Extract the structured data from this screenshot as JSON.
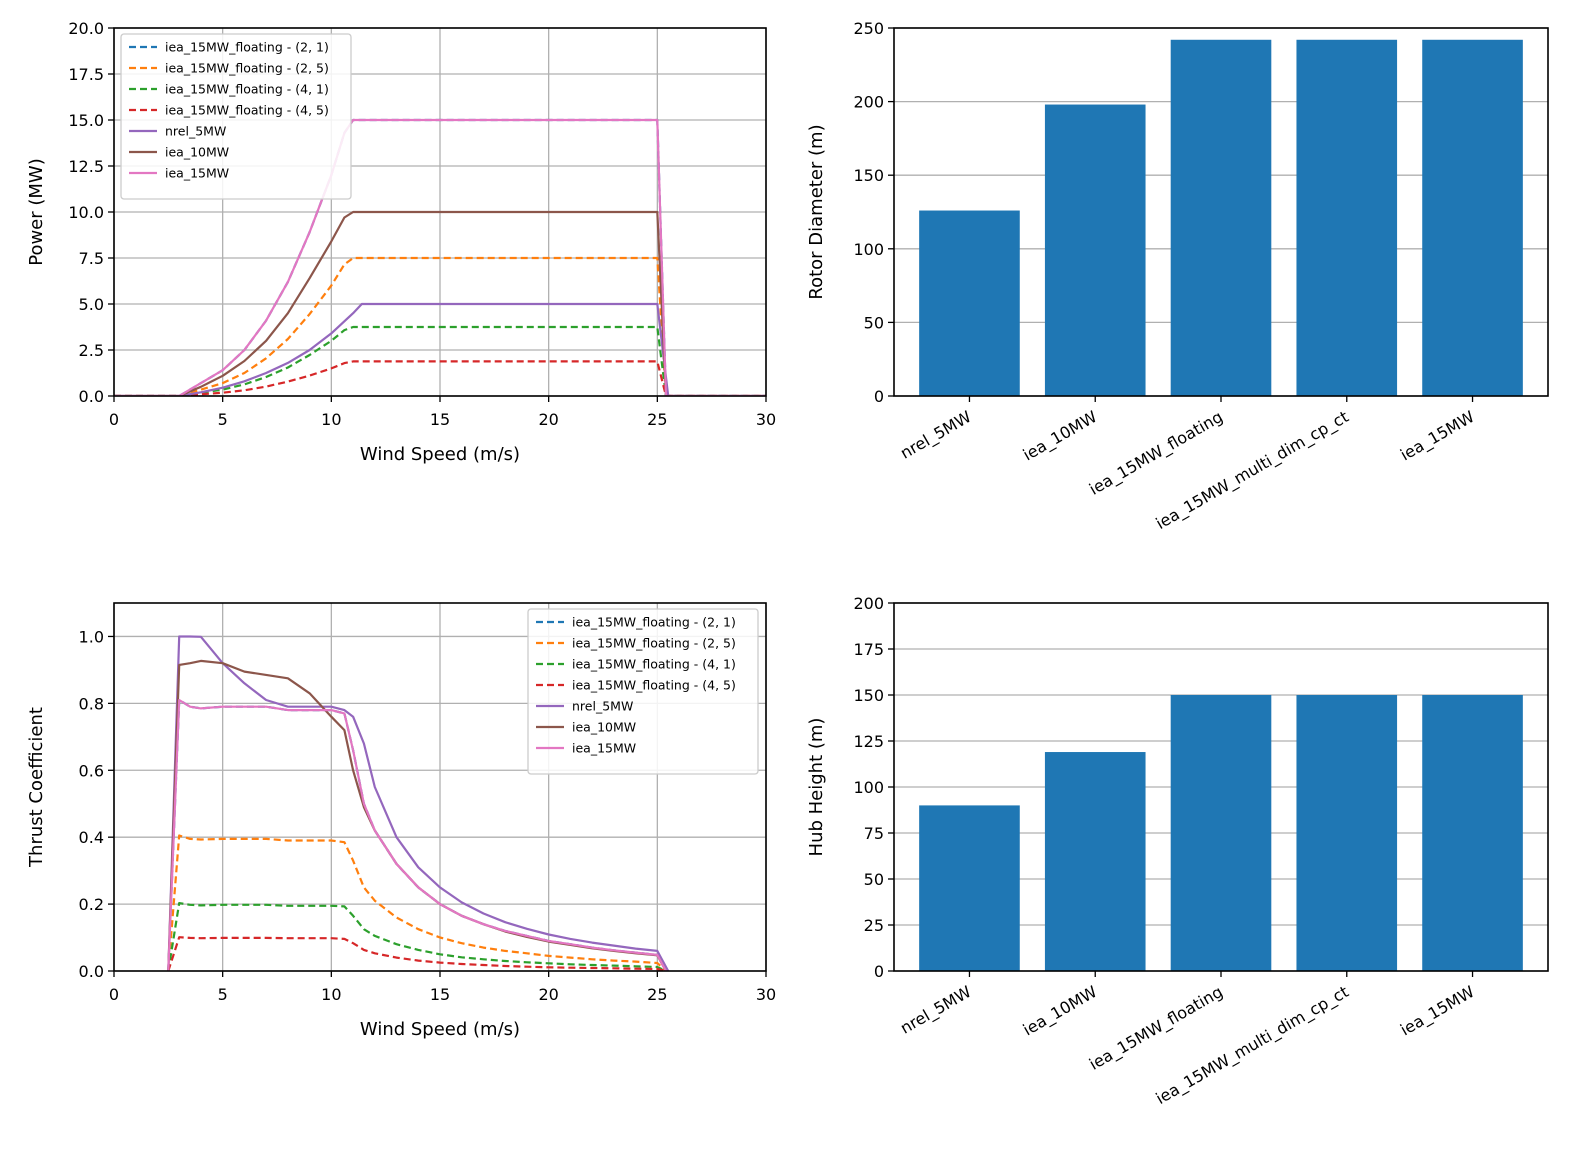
{
  "colors": {
    "tab_blue": "#1f77b4",
    "tab_orange": "#ff7f0e",
    "tab_green": "#2ca02c",
    "tab_red": "#d62728",
    "tab_purple": "#9467bd",
    "tab_brown": "#8c564b",
    "tab_pink": "#e377c2",
    "grid": "#b0b0b0",
    "bar": "#1f77b4"
  },
  "chart_data": [
    {
      "id": "power",
      "type": "line",
      "title": "",
      "xlabel": "Wind Speed (m/s)",
      "ylabel": "Power (MW)",
      "xlim": [
        0,
        30
      ],
      "ylim": [
        0,
        20
      ],
      "xticks": [
        0,
        5,
        10,
        15,
        20,
        25,
        30
      ],
      "xtick_labels": [
        "0",
        "5",
        "10",
        "15",
        "20",
        "25",
        "30"
      ],
      "yticks": [
        0,
        2.5,
        5,
        7.5,
        10,
        12.5,
        15,
        17.5,
        20
      ],
      "ytick_labels": [
        "0.0",
        "2.5",
        "5.0",
        "7.5",
        "10.0",
        "12.5",
        "15.0",
        "17.5",
        "20.0"
      ],
      "grid": true,
      "legend_position": "top-left",
      "series": [
        {
          "name": "iea_15MW_floating - (2, 1)",
          "color": "#1f77b4",
          "dashed": true,
          "x": [
            0,
            3,
            4,
            5,
            6,
            7,
            8,
            9,
            10,
            10.6,
            11,
            25,
            25.4,
            30
          ],
          "y": [
            0,
            0,
            0.7,
            1.4,
            2.5,
            4.1,
            6.2,
            8.9,
            12.0,
            14.3,
            15.0,
            15.0,
            0,
            0
          ]
        },
        {
          "name": "iea_15MW_floating - (2, 5)",
          "color": "#ff7f0e",
          "dashed": true,
          "x": [
            0,
            3,
            4,
            5,
            6,
            7,
            8,
            9,
            10,
            10.6,
            11,
            25,
            25.4,
            30
          ],
          "y": [
            0,
            0,
            0.35,
            0.7,
            1.25,
            2.05,
            3.1,
            4.45,
            6.0,
            7.15,
            7.5,
            7.5,
            0,
            0
          ]
        },
        {
          "name": "iea_15MW_floating - (4, 1)",
          "color": "#2ca02c",
          "dashed": true,
          "x": [
            0,
            3,
            4,
            5,
            6,
            7,
            8,
            9,
            10,
            10.6,
            11,
            25,
            25.4,
            30
          ],
          "y": [
            0,
            0,
            0.18,
            0.35,
            0.63,
            1.03,
            1.55,
            2.23,
            3.0,
            3.58,
            3.75,
            3.75,
            0,
            0
          ]
        },
        {
          "name": "iea_15MW_floating - (4, 5)",
          "color": "#d62728",
          "dashed": true,
          "x": [
            0,
            3,
            4,
            5,
            6,
            7,
            8,
            9,
            10,
            10.6,
            11,
            25,
            25.4,
            30
          ],
          "y": [
            0,
            0,
            0.09,
            0.18,
            0.31,
            0.51,
            0.78,
            1.11,
            1.5,
            1.79,
            1.88,
            1.88,
            0,
            0
          ]
        },
        {
          "name": "nrel_5MW",
          "color": "#9467bd",
          "dashed": false,
          "x": [
            0,
            3,
            4,
            5,
            6,
            7,
            8,
            9,
            10,
            11,
            11.4,
            25,
            25.5,
            30
          ],
          "y": [
            0,
            0,
            0.2,
            0.45,
            0.8,
            1.25,
            1.8,
            2.5,
            3.4,
            4.5,
            5.0,
            5.0,
            0,
            0
          ]
        },
        {
          "name": "iea_10MW",
          "color": "#8c564b",
          "dashed": false,
          "x": [
            0,
            3,
            4,
            5,
            6,
            7,
            8,
            9,
            10,
            10.6,
            11,
            25,
            25.4,
            30
          ],
          "y": [
            0,
            0,
            0.5,
            1.1,
            1.9,
            3.0,
            4.5,
            6.4,
            8.4,
            9.7,
            10.0,
            10.0,
            0,
            0
          ]
        },
        {
          "name": "iea_15MW",
          "color": "#e377c2",
          "dashed": false,
          "x": [
            0,
            3,
            4,
            5,
            6,
            7,
            8,
            9,
            10,
            10.6,
            11,
            25,
            25.4,
            30
          ],
          "y": [
            0,
            0,
            0.7,
            1.4,
            2.5,
            4.1,
            6.2,
            8.9,
            12.0,
            14.3,
            15.0,
            15.0,
            0,
            0
          ]
        }
      ]
    },
    {
      "id": "rotor",
      "type": "bar",
      "title": "",
      "xlabel": "",
      "ylabel": "Rotor Diameter (m)",
      "ylim": [
        0,
        250
      ],
      "yticks": [
        0,
        50,
        100,
        150,
        200,
        250
      ],
      "ytick_labels": [
        "0",
        "50",
        "100",
        "150",
        "200",
        "250"
      ],
      "grid": true,
      "categories": [
        "nrel_5MW",
        "iea_10MW",
        "iea_15MW_floating",
        "iea_15MW_multi_dim_cp_ct",
        "iea_15MW"
      ],
      "values": [
        126,
        198,
        242,
        242,
        242
      ]
    },
    {
      "id": "thrust",
      "type": "line",
      "title": "",
      "xlabel": "Wind Speed (m/s)",
      "ylabel": "Thrust Coefficient",
      "xlim": [
        0,
        30
      ],
      "ylim": [
        0,
        1.1
      ],
      "xticks": [
        0,
        5,
        10,
        15,
        20,
        25,
        30
      ],
      "xtick_labels": [
        "0",
        "5",
        "10",
        "15",
        "20",
        "25",
        "30"
      ],
      "yticks": [
        0,
        0.2,
        0.4,
        0.6,
        0.8,
        1.0
      ],
      "ytick_labels": [
        "0.0",
        "0.2",
        "0.4",
        "0.6",
        "0.8",
        "1.0"
      ],
      "grid": true,
      "legend_position": "top-right",
      "series": [
        {
          "name": "iea_15MW_floating - (2, 1)",
          "color": "#1f77b4",
          "dashed": true,
          "x": [
            2.5,
            3,
            3.5,
            4,
            5,
            6,
            7,
            8,
            9,
            10,
            10.6,
            11,
            11.5,
            12,
            13,
            14,
            15,
            16,
            17,
            18,
            19,
            20,
            21,
            22,
            23,
            24,
            25,
            25.4
          ],
          "y": [
            0,
            0.81,
            0.79,
            0.785,
            0.79,
            0.79,
            0.79,
            0.78,
            0.78,
            0.78,
            0.77,
            0.66,
            0.5,
            0.42,
            0.32,
            0.25,
            0.2,
            0.165,
            0.14,
            0.12,
            0.105,
            0.09,
            0.08,
            0.07,
            0.062,
            0.055,
            0.048,
            0
          ]
        },
        {
          "name": "iea_15MW_floating - (2, 5)",
          "color": "#ff7f0e",
          "dashed": true,
          "x": [
            2.5,
            3,
            3.5,
            4,
            5,
            6,
            7,
            8,
            9,
            10,
            10.6,
            11,
            11.5,
            12,
            13,
            14,
            15,
            16,
            17,
            18,
            19,
            20,
            21,
            22,
            23,
            24,
            25,
            25.4
          ],
          "y": [
            0,
            0.405,
            0.395,
            0.393,
            0.395,
            0.395,
            0.395,
            0.39,
            0.39,
            0.39,
            0.385,
            0.33,
            0.25,
            0.21,
            0.16,
            0.125,
            0.1,
            0.083,
            0.07,
            0.06,
            0.053,
            0.045,
            0.04,
            0.035,
            0.031,
            0.028,
            0.024,
            0
          ]
        },
        {
          "name": "iea_15MW_floating - (4, 1)",
          "color": "#2ca02c",
          "dashed": true,
          "x": [
            2.5,
            3,
            3.5,
            4,
            5,
            6,
            7,
            8,
            9,
            10,
            10.6,
            11,
            11.5,
            12,
            13,
            14,
            15,
            16,
            17,
            18,
            19,
            20,
            21,
            22,
            23,
            24,
            25,
            25.4
          ],
          "y": [
            0,
            0.203,
            0.198,
            0.196,
            0.198,
            0.198,
            0.198,
            0.195,
            0.195,
            0.195,
            0.193,
            0.165,
            0.125,
            0.105,
            0.08,
            0.063,
            0.05,
            0.041,
            0.035,
            0.03,
            0.026,
            0.023,
            0.02,
            0.018,
            0.016,
            0.014,
            0.012,
            0
          ]
        },
        {
          "name": "iea_15MW_floating - (4, 5)",
          "color": "#d62728",
          "dashed": true,
          "x": [
            2.5,
            3,
            3.5,
            4,
            5,
            6,
            7,
            8,
            9,
            10,
            10.6,
            11,
            11.5,
            12,
            13,
            14,
            15,
            16,
            17,
            18,
            19,
            20,
            21,
            22,
            23,
            24,
            25,
            25.4
          ],
          "y": [
            0,
            0.101,
            0.099,
            0.098,
            0.099,
            0.099,
            0.099,
            0.098,
            0.098,
            0.098,
            0.096,
            0.083,
            0.063,
            0.053,
            0.04,
            0.031,
            0.025,
            0.021,
            0.018,
            0.015,
            0.013,
            0.011,
            0.01,
            0.009,
            0.008,
            0.007,
            0.006,
            0
          ]
        },
        {
          "name": "nrel_5MW",
          "color": "#9467bd",
          "dashed": false,
          "x": [
            2.5,
            3,
            3.5,
            4,
            5,
            6,
            7,
            8,
            9,
            10,
            10.6,
            11,
            11.5,
            12,
            13,
            14,
            15,
            16,
            17,
            18,
            19,
            20,
            21,
            22,
            23,
            24,
            25,
            25.5
          ],
          "y": [
            0,
            1.0,
            1.0,
            0.999,
            0.92,
            0.86,
            0.81,
            0.79,
            0.79,
            0.79,
            0.78,
            0.76,
            0.68,
            0.55,
            0.4,
            0.31,
            0.25,
            0.205,
            0.172,
            0.146,
            0.126,
            0.109,
            0.096,
            0.085,
            0.076,
            0.067,
            0.06,
            0
          ]
        },
        {
          "name": "iea_10MW",
          "color": "#8c564b",
          "dashed": false,
          "x": [
            2.5,
            3,
            3.5,
            4,
            5,
            6,
            7,
            8,
            9,
            10,
            10.6,
            11,
            11.5,
            12,
            13,
            14,
            15,
            16,
            17,
            18,
            19,
            20,
            21,
            22,
            23,
            24,
            25,
            25.4
          ],
          "y": [
            0,
            0.915,
            0.92,
            0.927,
            0.92,
            0.895,
            0.885,
            0.875,
            0.83,
            0.76,
            0.72,
            0.6,
            0.49,
            0.42,
            0.32,
            0.25,
            0.2,
            0.165,
            0.14,
            0.118,
            0.102,
            0.088,
            0.078,
            0.068,
            0.06,
            0.053,
            0.047,
            0
          ]
        },
        {
          "name": "iea_15MW",
          "color": "#e377c2",
          "dashed": false,
          "x": [
            2.5,
            3,
            3.5,
            4,
            5,
            6,
            7,
            8,
            9,
            10,
            10.6,
            11,
            11.5,
            12,
            13,
            14,
            15,
            16,
            17,
            18,
            19,
            20,
            21,
            22,
            23,
            24,
            25,
            25.4
          ],
          "y": [
            0,
            0.81,
            0.79,
            0.785,
            0.79,
            0.79,
            0.79,
            0.78,
            0.78,
            0.78,
            0.77,
            0.66,
            0.5,
            0.42,
            0.32,
            0.25,
            0.2,
            0.165,
            0.14,
            0.12,
            0.105,
            0.09,
            0.08,
            0.07,
            0.062,
            0.055,
            0.048,
            0
          ]
        }
      ]
    },
    {
      "id": "hub",
      "type": "bar",
      "title": "",
      "xlabel": "",
      "ylabel": "Hub Height (m)",
      "ylim": [
        0,
        200
      ],
      "yticks": [
        0,
        25,
        50,
        75,
        100,
        125,
        150,
        175,
        200
      ],
      "ytick_labels": [
        "0",
        "25",
        "50",
        "75",
        "100",
        "125",
        "150",
        "175",
        "200"
      ],
      "grid": true,
      "categories": [
        "nrel_5MW",
        "iea_10MW",
        "iea_15MW_floating",
        "iea_15MW_multi_dim_cp_ct",
        "iea_15MW"
      ],
      "values": [
        90,
        119,
        150,
        150,
        150
      ]
    }
  ]
}
